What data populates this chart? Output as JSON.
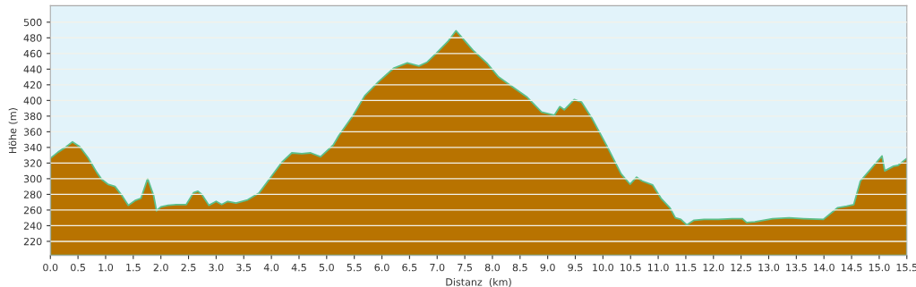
{
  "chart_data": {
    "type": "area",
    "xlabel": "Distanz  (km)",
    "ylabel": "Höhe (m)",
    "x": [
      0,
      0.14,
      0.27,
      0.4,
      0.53,
      0.68,
      0.84,
      0.93,
      1.04,
      1.17,
      1.3,
      1.41,
      1.53,
      1.64,
      1.76,
      1.87,
      1.92,
      2.0,
      2.13,
      2.28,
      2.46,
      2.59,
      2.67,
      2.74,
      2.87,
      3.0,
      3.1,
      3.21,
      3.36,
      3.57,
      3.78,
      3.98,
      4.19,
      4.37,
      4.55,
      4.71,
      4.89,
      5.12,
      5.22,
      5.48,
      5.69,
      5.94,
      6.21,
      6.46,
      6.67,
      6.82,
      6.98,
      7.19,
      7.34,
      7.65,
      7.91,
      8.11,
      8.37,
      8.63,
      8.89,
      9.12,
      9.22,
      9.3,
      9.48,
      9.61,
      9.81,
      10.07,
      10.33,
      10.49,
      10.61,
      10.71,
      10.9,
      11.05,
      11.21,
      11.31,
      11.41,
      11.52,
      11.65,
      11.83,
      12.09,
      12.34,
      12.52,
      12.6,
      12.75,
      13.07,
      13.37,
      13.63,
      13.99,
      14.25,
      14.41,
      14.54,
      14.66,
      14.82,
      15.05,
      15.1,
      15.26,
      15.34,
      15.5
    ],
    "series": [
      {
        "color": "#b87300",
        "values": [
          326,
          334,
          340,
          347,
          341,
          327,
          308,
          299,
          293,
          290,
          278,
          266,
          272,
          275,
          300,
          278,
          259,
          264,
          266,
          267,
          267,
          282,
          284,
          280,
          266,
          271,
          267,
          271,
          269,
          273,
          282,
          301,
          321,
          333,
          332,
          333,
          328,
          343,
          355,
          381,
          406,
          424,
          441,
          448,
          444,
          449,
          460,
          475,
          489,
          464,
          447,
          430,
          417,
          404,
          385,
          381,
          392,
          388,
          401,
          398,
          376,
          342,
          306,
          293,
          302,
          297,
          292,
          275,
          263,
          250,
          248,
          241,
          247,
          248,
          248,
          249,
          249,
          244,
          245,
          249,
          250,
          249,
          248,
          263,
          265,
          267,
          297,
          310,
          329,
          310,
          316,
          317,
          326
        ]
      }
    ],
    "xlim": [
      0,
      15.5
    ],
    "xticks": [
      {
        "value": 0,
        "label": "0.0"
      },
      0.5,
      {
        "value": 1,
        "label": "1.0"
      },
      1.5,
      {
        "value": 2,
        "label": "2.0"
      },
      2.5,
      {
        "value": 3,
        "label": "3.0"
      },
      3.5,
      {
        "value": 4,
        "label": "4.0"
      },
      4.5,
      {
        "value": 5,
        "label": "5.0"
      },
      5.5,
      {
        "value": 6,
        "label": "6.0"
      },
      6.5,
      {
        "value": 7,
        "label": "7.0"
      },
      7.5,
      {
        "value": 8,
        "label": "8.0"
      },
      8.5,
      {
        "value": 9,
        "label": "9.0"
      },
      9.5,
      {
        "value": 10,
        "label": "10.0"
      },
      10.5,
      {
        "value": 11,
        "label": "11.0"
      },
      11.5,
      {
        "value": 12,
        "label": "12.0"
      },
      12.5,
      {
        "value": 13,
        "label": "13.0"
      },
      13.5,
      {
        "value": 14,
        "label": "14.0"
      },
      14.5,
      {
        "value": 15,
        "label": "15.0"
      },
      15.5
    ],
    "ylim": [
      202,
      521
    ],
    "yticks": [
      220,
      240,
      260,
      280,
      300,
      320,
      340,
      360,
      380,
      400,
      420,
      440,
      460,
      480,
      500
    ],
    "grid": "y",
    "legend": false
  }
}
